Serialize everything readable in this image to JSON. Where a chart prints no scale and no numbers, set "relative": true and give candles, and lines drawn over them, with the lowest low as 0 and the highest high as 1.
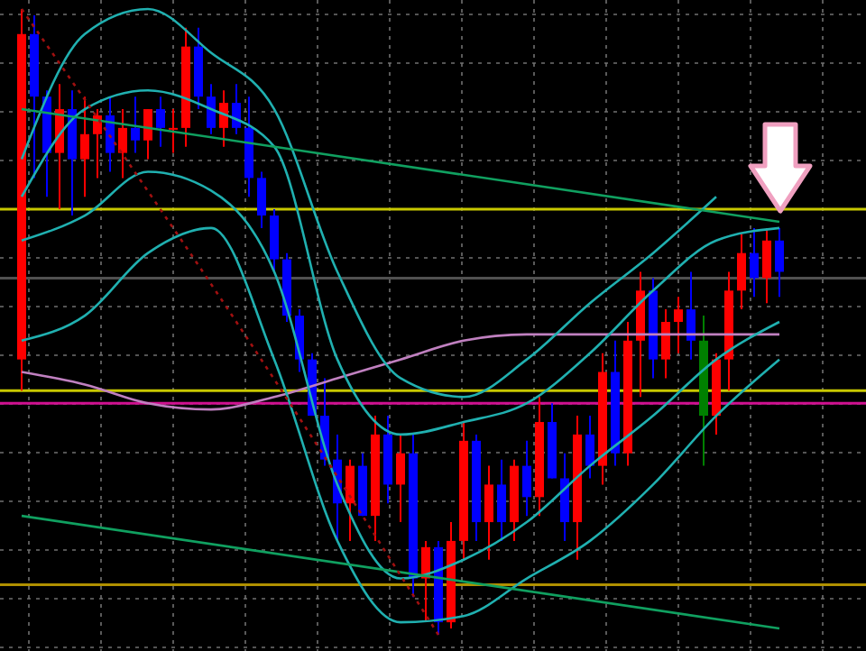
{
  "chart_data": {
    "type": "candlestick",
    "relative": true,
    "grid": true,
    "categories": [
      null,
      null,
      null,
      null,
      null,
      null,
      null,
      null,
      null,
      null,
      null,
      null,
      null,
      null,
      null,
      null,
      null,
      null,
      null,
      null,
      null,
      null,
      null,
      null,
      null,
      null,
      null,
      null,
      null,
      null,
      null,
      null,
      null,
      null,
      null,
      null,
      null,
      null,
      null,
      null,
      null,
      null,
      null,
      null,
      null,
      null,
      null,
      null,
      null,
      null,
      null,
      null,
      null,
      null,
      null,
      null,
      null,
      null,
      null,
      null,
      null
    ],
    "ohlc": [
      [
        0.44,
        1.0,
        0.39,
        0.96
      ],
      [
        0.96,
        0.99,
        0.73,
        0.86
      ],
      [
        0.86,
        0.87,
        0.7,
        0.77
      ],
      [
        0.77,
        0.88,
        0.68,
        0.84
      ],
      [
        0.84,
        0.87,
        0.67,
        0.76
      ],
      [
        0.76,
        0.86,
        0.7,
        0.8
      ],
      [
        0.8,
        0.84,
        0.73,
        0.83
      ],
      [
        0.83,
        0.86,
        0.74,
        0.77
      ],
      [
        0.77,
        0.84,
        0.73,
        0.81
      ],
      [
        0.81,
        0.86,
        0.77,
        0.79
      ],
      [
        0.79,
        0.84,
        0.76,
        0.84
      ],
      [
        0.84,
        0.86,
        0.78,
        0.81
      ],
      [
        0.81,
        0.84,
        0.77,
        0.81
      ],
      [
        0.81,
        0.97,
        0.78,
        0.94
      ],
      [
        0.94,
        0.97,
        0.84,
        0.86
      ],
      [
        0.86,
        0.88,
        0.8,
        0.81
      ],
      [
        0.81,
        0.87,
        0.78,
        0.85
      ],
      [
        0.85,
        0.88,
        0.8,
        0.81
      ],
      [
        0.81,
        0.86,
        0.7,
        0.73
      ],
      [
        0.73,
        0.74,
        0.65,
        0.67
      ],
      [
        0.67,
        0.68,
        0.58,
        0.6
      ],
      [
        0.6,
        0.61,
        0.5,
        0.51
      ],
      [
        0.51,
        0.52,
        0.42,
        0.44
      ],
      [
        0.44,
        0.45,
        0.35,
        0.35
      ],
      [
        0.35,
        0.41,
        0.27,
        0.28
      ],
      [
        0.28,
        0.32,
        0.15,
        0.21
      ],
      [
        0.21,
        0.28,
        0.15,
        0.27
      ],
      [
        0.27,
        0.29,
        0.19,
        0.19
      ],
      [
        0.19,
        0.35,
        0.15,
        0.32
      ],
      [
        0.32,
        0.35,
        0.21,
        0.24
      ],
      [
        0.24,
        0.32,
        0.18,
        0.29
      ],
      [
        0.29,
        0.32,
        0.06,
        0.09
      ],
      [
        0.09,
        0.15,
        0.02,
        0.14
      ],
      [
        0.14,
        0.15,
        0,
        0.02
      ],
      [
        0.02,
        0.18,
        0.01,
        0.15
      ],
      [
        0.15,
        0.34,
        0.12,
        0.31
      ],
      [
        0.31,
        0.32,
        0.15,
        0.18
      ],
      [
        0.18,
        0.27,
        0.12,
        0.24
      ],
      [
        0.24,
        0.28,
        0.15,
        0.18
      ],
      [
        0.18,
        0.28,
        0.15,
        0.27
      ],
      [
        0.27,
        0.31,
        0.19,
        0.22
      ],
      [
        0.22,
        0.38,
        0.19,
        0.34
      ],
      [
        0.34,
        0.37,
        0.25,
        0.25
      ],
      [
        0.25,
        0.29,
        0.15,
        0.18
      ],
      [
        0.18,
        0.35,
        0.12,
        0.32
      ],
      [
        0.32,
        0.35,
        0.25,
        0.27
      ],
      [
        0.27,
        0.45,
        0.24,
        0.42
      ],
      [
        0.42,
        0.47,
        0.27,
        0.29
      ],
      [
        0.29,
        0.5,
        0.27,
        0.47
      ],
      [
        0.47,
        0.58,
        0.38,
        0.55
      ],
      [
        0.55,
        0.57,
        0.41,
        0.44
      ],
      [
        0.44,
        0.52,
        0.41,
        0.5
      ],
      [
        0.5,
        0.54,
        0.45,
        0.52
      ],
      [
        0.52,
        0.58,
        0.44,
        0.47
      ],
      [
        0.47,
        0.51,
        0.27,
        0.35
      ],
      [
        0.35,
        0.45,
        0.32,
        0.44
      ],
      [
        0.44,
        0.58,
        0.39,
        0.55
      ],
      [
        0.55,
        0.64,
        0.52,
        0.61
      ],
      [
        0.61,
        0.65,
        0.54,
        0.57
      ],
      [
        0.57,
        0.65,
        0.53,
        0.63
      ],
      [
        0.63,
        0.65,
        0.54,
        0.58
      ]
    ],
    "colors": [
      "#ff0000",
      "#0000ff",
      "#0000ff",
      "#ff0000",
      "#0000ff",
      "#ff0000",
      "#ff0000",
      "#0000ff",
      "#ff0000",
      "#0000ff",
      "#ff0000",
      "#0000ff",
      "#ff0000",
      "#ff0000",
      "#0000ff",
      "#0000ff",
      "#ff0000",
      "#0000ff",
      "#0000ff",
      "#0000ff",
      "#0000ff",
      "#0000ff",
      "#0000ff",
      "#0000ff",
      "#0000ff",
      "#0000ff",
      "#ff0000",
      "#0000ff",
      "#ff0000",
      "#0000ff",
      "#ff0000",
      "#0000ff",
      "#ff0000",
      "#0000ff",
      "#ff0000",
      "#ff0000",
      "#0000ff",
      "#ff0000",
      "#0000ff",
      "#ff0000",
      "#0000ff",
      "#ff0000",
      "#0000ff",
      "#0000ff",
      "#ff0000",
      "#0000ff",
      "#ff0000",
      "#0000ff",
      "#ff0000",
      "#ff0000",
      "#0000ff",
      "#ff0000",
      "#ff0000",
      "#0000ff",
      "#008000",
      "#ff0000",
      "#ff0000",
      "#ff0000",
      "#0000ff",
      "#ff0000",
      "#0000ff"
    ],
    "series": [
      {
        "type": "line",
        "color": "#c080c0",
        "values": [
          0.42,
          null,
          null,
          null,
          null,
          0.4,
          null,
          null,
          null,
          null,
          0.37,
          null,
          null,
          null,
          null,
          0.36,
          null,
          null,
          null,
          null,
          0.38,
          null,
          null,
          null,
          null,
          0.41,
          null,
          null,
          null,
          null,
          0.44,
          null,
          null,
          null,
          null,
          0.47,
          null,
          null,
          null,
          null,
          0.48,
          null,
          null,
          null,
          null,
          0.48,
          null,
          null,
          null,
          null,
          0.48,
          null,
          null,
          null,
          null,
          0.48,
          null,
          null,
          null,
          null,
          0.48
        ]
      },
      {
        "type": "line",
        "color": "#20b0b0",
        "values": [
          0.7,
          null,
          null,
          null,
          null,
          0.84,
          null,
          null,
          null,
          null,
          0.87,
          null,
          null,
          null,
          null,
          0.84,
          null,
          null,
          null,
          null,
          0.78,
          null,
          null,
          null,
          null,
          0.44,
          null,
          null,
          null,
          null,
          0.32,
          null,
          null,
          null,
          null,
          0.34,
          null,
          null,
          null,
          null,
          0.37,
          null,
          null,
          null,
          null,
          0.45,
          null,
          null,
          null,
          null,
          0.55,
          null,
          null,
          null,
          null,
          0.63,
          null,
          null,
          null,
          null,
          0.65
        ]
      },
      {
        "type": "line",
        "color": "#20b0b0",
        "values": [
          0.63,
          null,
          null,
          null,
          null,
          0.67,
          null,
          null,
          null,
          null,
          0.74,
          null,
          null,
          null,
          null,
          0.71,
          null,
          null,
          null,
          null,
          0.58,
          null,
          null,
          null,
          null,
          0.24,
          null,
          null,
          null,
          null,
          0.09,
          null,
          null,
          null,
          null,
          0.12,
          null,
          null,
          null,
          null,
          0.18,
          null,
          null,
          null,
          null,
          0.27,
          null,
          null,
          null,
          null,
          0.35,
          null,
          null,
          null,
          null,
          0.44,
          null,
          null,
          null,
          null,
          0.5
        ]
      },
      {
        "type": "line",
        "color": "#20b0b0",
        "values": [
          0.76,
          null,
          null,
          null,
          null,
          0.96,
          null,
          null,
          null,
          null,
          1.0,
          null,
          null,
          null,
          null,
          0.93,
          null,
          null,
          null,
          null,
          0.84,
          null,
          null,
          null,
          null,
          0.58,
          null,
          null,
          null,
          null,
          0.41,
          null,
          null,
          null,
          null,
          0.38,
          null,
          null,
          null,
          null,
          0.44,
          null,
          null,
          null,
          null,
          0.53,
          null,
          null,
          null,
          null,
          0.61,
          null,
          null,
          null,
          null,
          0.7,
          null,
          null,
          null,
          null,
          null
        ]
      },
      {
        "type": "line",
        "color": "#20b0b0",
        "values": [
          0.47,
          null,
          null,
          null,
          null,
          0.51,
          null,
          null,
          null,
          null,
          0.61,
          null,
          null,
          null,
          null,
          0.65,
          null,
          null,
          null,
          null,
          0.44,
          null,
          null,
          null,
          null,
          0.15,
          null,
          null,
          null,
          null,
          0.02,
          null,
          null,
          null,
          null,
          0.03,
          null,
          null,
          null,
          null,
          0.09,
          null,
          null,
          null,
          null,
          0.15,
          null,
          null,
          null,
          null,
          0.24,
          null,
          null,
          null,
          null,
          0.35,
          null,
          null,
          null,
          null,
          0.44
        ]
      },
      {
        "type": "line",
        "color": "#10a060",
        "values": [
          0.84,
          null,
          null,
          null,
          null,
          null,
          null,
          null,
          null,
          null,
          null,
          null,
          null,
          null,
          null,
          null,
          null,
          null,
          null,
          null,
          null,
          null,
          null,
          null,
          null,
          null,
          null,
          null,
          null,
          null,
          null,
          null,
          null,
          null,
          null,
          null,
          null,
          null,
          null,
          null,
          null,
          null,
          null,
          null,
          null,
          null,
          null,
          null,
          null,
          null,
          null,
          null,
          null,
          null,
          null,
          null,
          null,
          null,
          null,
          null,
          0.66
        ]
      },
      {
        "type": "line",
        "color": "#10a060",
        "values": [
          0.19,
          null,
          null,
          null,
          null,
          null,
          null,
          null,
          null,
          null,
          null,
          null,
          null,
          null,
          null,
          null,
          null,
          null,
          null,
          null,
          null,
          null,
          null,
          null,
          null,
          null,
          null,
          null,
          null,
          null,
          null,
          null,
          null,
          null,
          null,
          null,
          null,
          null,
          null,
          null,
          null,
          null,
          null,
          null,
          null,
          null,
          null,
          null,
          null,
          null,
          null,
          null,
          null,
          null,
          null,
          null,
          null,
          null,
          null,
          null,
          0.01
        ]
      },
      {
        "type": "line",
        "color": "#a01010",
        "line_style": "dotted",
        "values": [
          1.0,
          null,
          null,
          null,
          null,
          null,
          null,
          null,
          null,
          null,
          null,
          null,
          null,
          null,
          null,
          null,
          null,
          0.5,
          null,
          null,
          null,
          null,
          null,
          null,
          null,
          null,
          null,
          null,
          null,
          null,
          null,
          null,
          null,
          0,
          null,
          null,
          null,
          null,
          null,
          null,
          null,
          null,
          null,
          null,
          null,
          null,
          null,
          null,
          null,
          null,
          null,
          null,
          null,
          null,
          null,
          null,
          null,
          null,
          null,
          null,
          null
        ]
      }
    ],
    "ref_lines": [
      {
        "axis": "y",
        "value": 0.68,
        "color": "#c8c800"
      },
      {
        "axis": "y",
        "value": 0.57,
        "color": "#505050"
      },
      {
        "axis": "y",
        "value": 0.39,
        "color": "#c8c800"
      },
      {
        "axis": "y",
        "value": 0.37,
        "color": "#d01090"
      },
      {
        "axis": "y",
        "value": 0.08,
        "color": "#b09000"
      }
    ]
  }
}
